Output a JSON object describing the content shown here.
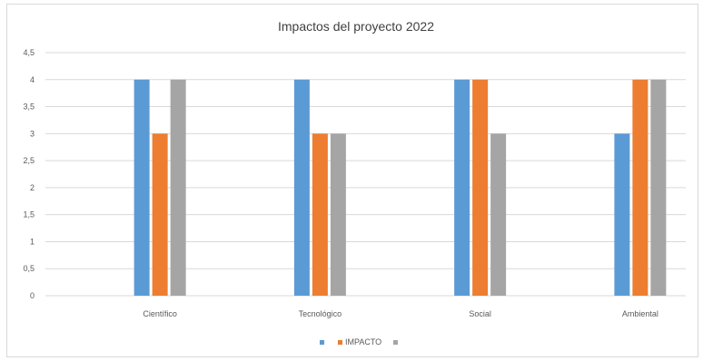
{
  "chart_data": {
    "type": "bar",
    "title": "Impactos del proyecto 2022",
    "categories": [
      "Científico",
      "Tecnológico",
      "Social",
      "Ambiental"
    ],
    "series": [
      {
        "name": "",
        "color": "#5b9bd5",
        "values": [
          4,
          4,
          4,
          3
        ]
      },
      {
        "name": "IMPACTO",
        "color": "#ed7d31",
        "values": [
          3,
          3,
          4,
          4
        ]
      },
      {
        "name": "",
        "color": "#a5a5a5",
        "values": [
          4,
          3,
          3,
          4
        ]
      }
    ],
    "ylim": [
      0,
      4.5
    ],
    "yticks": [
      "0",
      "0,5",
      "1",
      "1,5",
      "2",
      "2,5",
      "3",
      "3,5",
      "4",
      "4,5"
    ],
    "grid": true,
    "legend": "bottom"
  }
}
